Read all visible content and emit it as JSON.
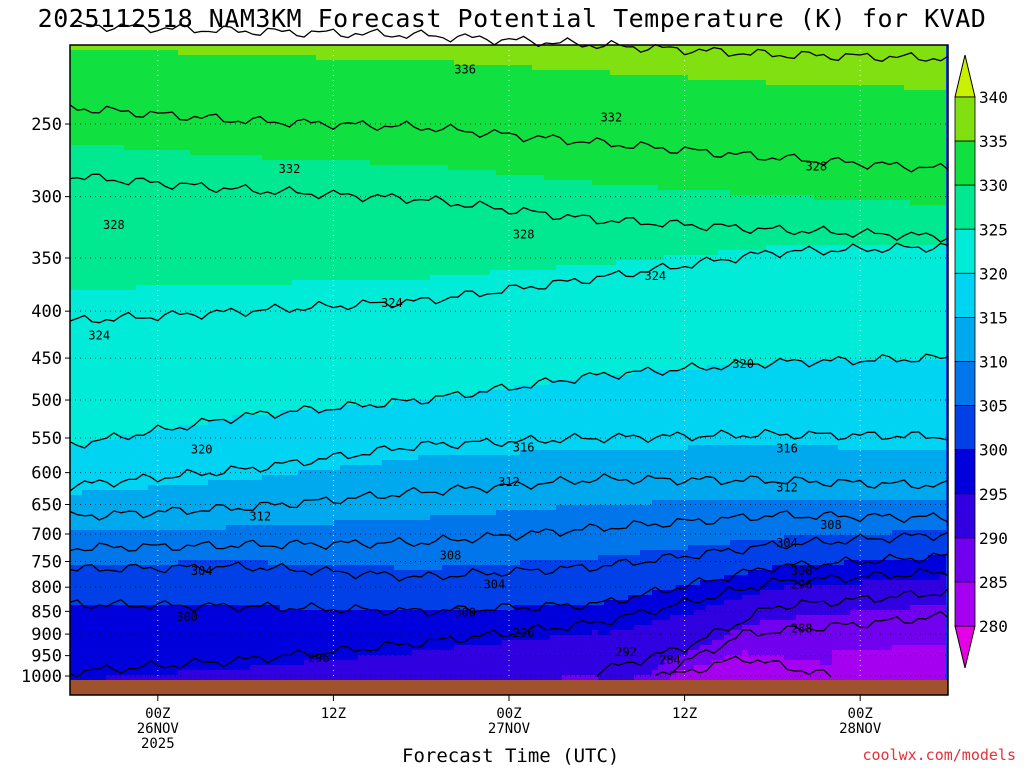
{
  "title": "2025112518 NAM3KM Forecast Potential Temperature (K) for KVAD",
  "credit": "coolwx.com/models",
  "chart_data": {
    "type": "time-height contour",
    "title": "2025112518 NAM3KM Forecast Potential Temperature (K) for KVAD",
    "xlabel": "Forecast Time (UTC)",
    "ylabel": "",
    "y_scale": "pressure (log, inverted)",
    "y_ticks": [
      250,
      300,
      350,
      400,
      450,
      500,
      550,
      600,
      650,
      700,
      750,
      800,
      850,
      900,
      950,
      1000
    ],
    "y_ticklabels": [
      "250",
      "300",
      "350",
      "400",
      "450",
      "500",
      "550",
      "600",
      "650",
      "700",
      "750",
      "800",
      "850",
      "900",
      "950",
      "1000"
    ],
    "x_ticks": [
      {
        "hour": 6,
        "label": [
          "00Z",
          "26NOV",
          "2025"
        ]
      },
      {
        "hour": 18,
        "label": [
          "12Z"
        ]
      },
      {
        "hour": 30,
        "label": [
          "00Z",
          "27NOV"
        ]
      },
      {
        "hour": 42,
        "label": [
          "12Z"
        ]
      },
      {
        "hour": 54,
        "label": [
          "00Z",
          "28NOV"
        ]
      }
    ],
    "x_range_hours": [
      0,
      60
    ],
    "grid": "dotted",
    "colorbar": {
      "values": [
        280,
        285,
        290,
        295,
        300,
        305,
        310,
        315,
        320,
        325,
        330,
        335,
        340
      ],
      "labels": [
        "280",
        "285",
        "290",
        "295",
        "300",
        "305",
        "310",
        "315",
        "320",
        "325",
        "330",
        "335",
        "340"
      ],
      "colors": [
        "#e600e6",
        "#a600f0",
        "#7000ee",
        "#3000e0",
        "#0000dc",
        "#0040e6",
        "#0076ea",
        "#00a8ee",
        "#00d4f2",
        "#00ecd8",
        "#00e890",
        "#10e040",
        "#80e010",
        "#c8f000"
      ]
    },
    "contours": [
      {
        "theta": 336,
        "points": [
          [
            0,
            195
          ],
          [
            12,
            198
          ],
          [
            24,
            200
          ],
          [
            36,
            205
          ],
          [
            48,
            210
          ],
          [
            60,
            212
          ]
        ]
      },
      {
        "theta": 332,
        "points": [
          [
            0,
            240
          ],
          [
            12,
            248
          ],
          [
            24,
            252
          ],
          [
            36,
            262
          ],
          [
            48,
            272
          ],
          [
            60,
            280
          ]
        ]
      },
      {
        "theta": 328,
        "points": [
          [
            0,
            285
          ],
          [
            12,
            295
          ],
          [
            24,
            302
          ],
          [
            36,
            318
          ],
          [
            48,
            326
          ],
          [
            60,
            332
          ]
        ]
      },
      {
        "theta": 324,
        "points": [
          [
            0,
            410
          ],
          [
            12,
            400
          ],
          [
            24,
            390
          ],
          [
            36,
            368
          ],
          [
            48,
            345
          ],
          [
            60,
            340
          ]
        ]
      },
      {
        "theta": 320,
        "points": [
          [
            0,
            560
          ],
          [
            12,
            520
          ],
          [
            24,
            500
          ],
          [
            36,
            470
          ],
          [
            48,
            455
          ],
          [
            60,
            450
          ]
        ]
      },
      {
        "theta": 316,
        "points": [
          [
            0,
            620
          ],
          [
            12,
            595
          ],
          [
            24,
            560
          ],
          [
            36,
            550
          ],
          [
            48,
            545
          ],
          [
            60,
            548
          ]
        ]
      },
      {
        "theta": 312,
        "points": [
          [
            0,
            670
          ],
          [
            12,
            655
          ],
          [
            24,
            630
          ],
          [
            36,
            610
          ],
          [
            48,
            612
          ],
          [
            60,
            620
          ]
        ]
      },
      {
        "theta": 308,
        "points": [
          [
            0,
            725
          ],
          [
            12,
            720
          ],
          [
            24,
            715
          ],
          [
            36,
            690
          ],
          [
            48,
            668
          ],
          [
            60,
            672
          ]
        ]
      },
      {
        "theta": 304,
        "points": [
          [
            0,
            765
          ],
          [
            12,
            760
          ],
          [
            24,
            780
          ],
          [
            36,
            760
          ],
          [
            48,
            720
          ],
          [
            60,
            700
          ]
        ]
      },
      {
        "theta": 300,
        "points": [
          [
            0,
            835
          ],
          [
            12,
            840
          ],
          [
            24,
            850
          ],
          [
            36,
            835
          ],
          [
            48,
            760
          ],
          [
            60,
            740
          ]
        ]
      },
      {
        "theta": 296,
        "points": [
          [
            0,
            990
          ],
          [
            12,
            960
          ],
          [
            24,
            920
          ],
          [
            36,
            875
          ],
          [
            48,
            790
          ],
          [
            60,
            770
          ]
        ]
      },
      {
        "theta": 292,
        "points": [
          [
            36,
            990
          ],
          [
            42,
            930
          ],
          [
            48,
            840
          ],
          [
            60,
            810
          ]
        ]
      },
      {
        "theta": 288,
        "points": [
          [
            40,
            1000
          ],
          [
            46,
            900
          ],
          [
            60,
            860
          ]
        ]
      },
      {
        "theta": 284,
        "points": [
          [
            41,
            1000
          ],
          [
            46,
            955
          ],
          [
            52,
            1000
          ]
        ]
      }
    ],
    "contour_labels": [
      {
        "text": "336",
        "hour": 27,
        "p": 218
      },
      {
        "text": "332",
        "hour": 15,
        "p": 280
      },
      {
        "text": "332",
        "hour": 37,
        "p": 246
      },
      {
        "text": "328",
        "hour": 3,
        "p": 322
      },
      {
        "text": "328",
        "hour": 31,
        "p": 330
      },
      {
        "text": "328",
        "hour": 51,
        "p": 278
      },
      {
        "text": "324",
        "hour": 2,
        "p": 425
      },
      {
        "text": "324",
        "hour": 22,
        "p": 392
      },
      {
        "text": "324",
        "hour": 40,
        "p": 366
      },
      {
        "text": "320",
        "hour": 9,
        "p": 566
      },
      {
        "text": "320",
        "hour": 46,
        "p": 457
      },
      {
        "text": "316",
        "hour": 31,
        "p": 563
      },
      {
        "text": "316",
        "hour": 49,
        "p": 565
      },
      {
        "text": "312",
        "hour": 13,
        "p": 670
      },
      {
        "text": "312",
        "hour": 30,
        "p": 614
      },
      {
        "text": "312",
        "hour": 49,
        "p": 623
      },
      {
        "text": "308",
        "hour": 26,
        "p": 739
      },
      {
        "text": "308",
        "hour": 52,
        "p": 684
      },
      {
        "text": "304",
        "hour": 9,
        "p": 768
      },
      {
        "text": "304",
        "hour": 29,
        "p": 795
      },
      {
        "text": "304",
        "hour": 49,
        "p": 716
      },
      {
        "text": "300",
        "hour": 8,
        "p": 862
      },
      {
        "text": "300",
        "hour": 27,
        "p": 853
      },
      {
        "text": "300",
        "hour": 50,
        "p": 768
      },
      {
        "text": "296",
        "hour": 17,
        "p": 956
      },
      {
        "text": "296",
        "hour": 31,
        "p": 898
      },
      {
        "text": "296",
        "hour": 50,
        "p": 795
      },
      {
        "text": "292",
        "hour": 38,
        "p": 942
      },
      {
        "text": "288",
        "hour": 50,
        "p": 888
      },
      {
        "text": "284",
        "hour": 41,
        "p": 960
      }
    ]
  }
}
